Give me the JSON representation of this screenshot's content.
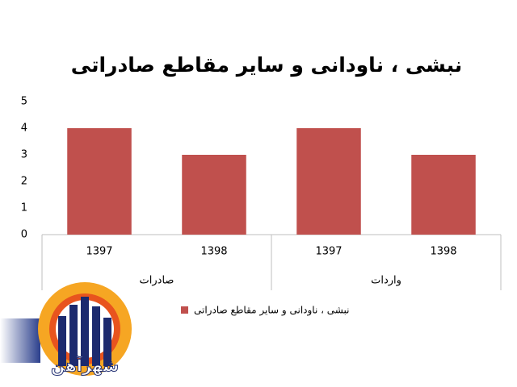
{
  "chart_data": {
    "type": "bar",
    "title": "نبشی ، ناودانی و سایر مقاطع صادراتی",
    "categories": [
      "1397",
      "1398",
      "1397",
      "1398"
    ],
    "groups": [
      "صادرات",
      "واردات"
    ],
    "series": [
      {
        "name": "نبشی ، ناودانی و سایر مقاطع صادراتی",
        "color": "#c0504d",
        "values": [
          4,
          3,
          4,
          3
        ]
      }
    ],
    "ylim": [
      0,
      5
    ],
    "yticks": [
      0,
      1,
      2,
      3,
      4,
      5
    ],
    "grid": false,
    "legend": "bottom"
  },
  "watermark": "شهرآهن"
}
